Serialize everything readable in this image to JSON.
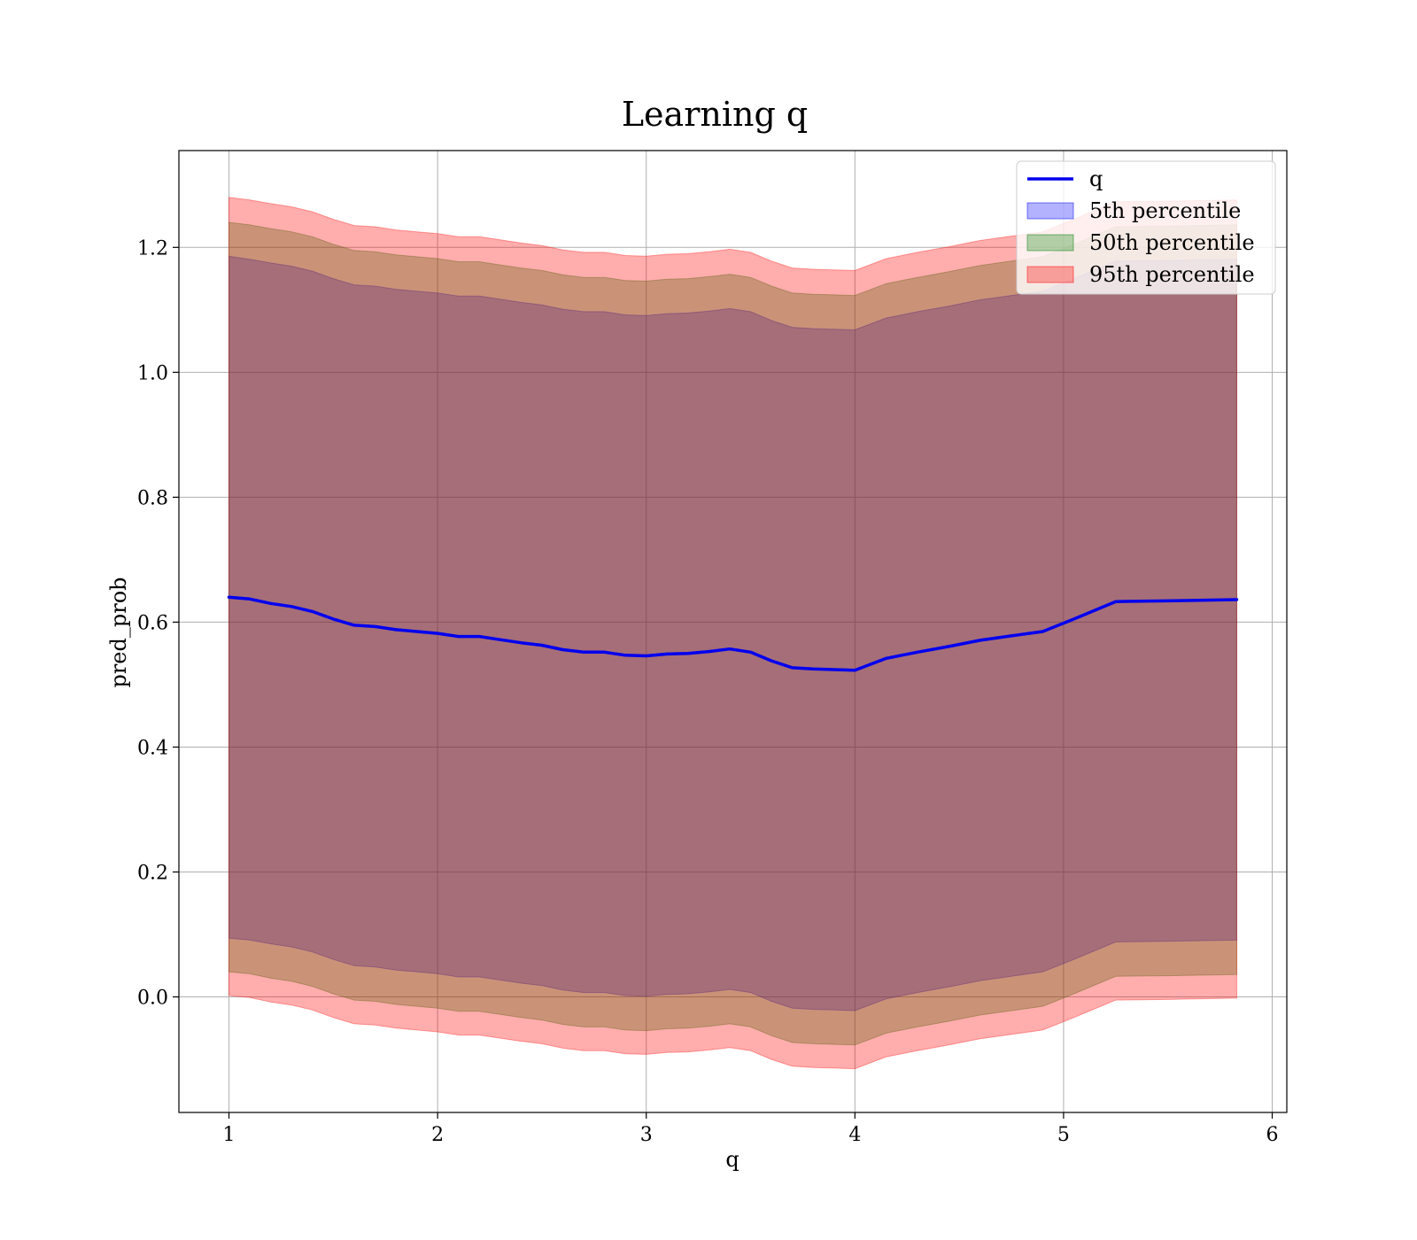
{
  "chart_data": {
    "type": "line",
    "title": "Learning q",
    "xlabel": "q",
    "ylabel": "pred_prob",
    "xlim": [
      0.76,
      6.07
    ],
    "ylim": [
      -0.185,
      1.355
    ],
    "xticks": [
      1,
      2,
      3,
      4,
      5,
      6
    ],
    "xtick_labels": [
      "1",
      "2",
      "3",
      "4",
      "5",
      "6"
    ],
    "yticks": [
      0.0,
      0.2,
      0.4,
      0.6,
      0.8,
      1.0,
      1.2
    ],
    "ytick_labels": [
      "0.0",
      "0.2",
      "0.4",
      "0.6",
      "0.8",
      "1.0",
      "1.2"
    ],
    "grid": true,
    "legend_position": "top-right",
    "x": [
      1.0,
      1.1,
      1.2,
      1.3,
      1.4,
      1.5,
      1.6,
      1.7,
      1.8,
      1.9,
      2.0,
      2.1,
      2.2,
      2.3,
      2.4,
      2.5,
      2.6,
      2.7,
      2.8,
      2.9,
      3.0,
      3.1,
      3.2,
      3.3,
      3.4,
      3.5,
      3.6,
      3.7,
      3.8,
      3.9,
      4.0,
      4.15,
      4.3,
      4.45,
      4.6,
      4.75,
      4.9,
      5.05,
      5.25,
      5.5,
      5.83
    ],
    "line": {
      "name": "q",
      "color": "#0000ee",
      "values": [
        0.64,
        0.637,
        0.63,
        0.625,
        0.617,
        0.605,
        0.595,
        0.593,
        0.588,
        0.585,
        0.582,
        0.577,
        0.577,
        0.572,
        0.567,
        0.563,
        0.556,
        0.552,
        0.552,
        0.547,
        0.546,
        0.549,
        0.55,
        0.553,
        0.557,
        0.552,
        0.538,
        0.527,
        0.525,
        0.524,
        0.523,
        0.542,
        0.552,
        0.561,
        0.571,
        0.578,
        0.585,
        0.605,
        0.633,
        0.634,
        0.636
      ]
    },
    "bands": [
      {
        "name": "5th percentile",
        "color": "#0000ff",
        "opacity": 0.3,
        "upper": [
          1.186,
          1.181,
          1.175,
          1.17,
          1.162,
          1.15,
          1.14,
          1.138,
          1.133,
          1.13,
          1.127,
          1.122,
          1.122,
          1.117,
          1.112,
          1.108,
          1.101,
          1.097,
          1.097,
          1.092,
          1.091,
          1.094,
          1.095,
          1.098,
          1.102,
          1.097,
          1.083,
          1.072,
          1.07,
          1.069,
          1.068,
          1.087,
          1.097,
          1.106,
          1.116,
          1.123,
          1.13,
          1.15,
          1.178,
          1.179,
          1.181
        ],
        "lower": [
          0.094,
          0.091,
          0.085,
          0.08,
          0.072,
          0.06,
          0.05,
          0.048,
          0.043,
          0.04,
          0.037,
          0.032,
          0.032,
          0.027,
          0.022,
          0.018,
          0.011,
          0.007,
          0.007,
          0.002,
          0.001,
          0.004,
          0.005,
          0.008,
          0.012,
          0.007,
          -0.007,
          -0.018,
          -0.02,
          -0.021,
          -0.022,
          -0.003,
          0.007,
          0.016,
          0.026,
          0.033,
          0.04,
          0.06,
          0.088,
          0.089,
          0.091
        ]
      },
      {
        "name": "50th percentile",
        "color": "#008000",
        "opacity": 0.3,
        "upper": [
          1.24,
          1.236,
          1.23,
          1.225,
          1.217,
          1.205,
          1.195,
          1.193,
          1.188,
          1.185,
          1.182,
          1.177,
          1.177,
          1.172,
          1.167,
          1.163,
          1.156,
          1.152,
          1.152,
          1.147,
          1.146,
          1.149,
          1.15,
          1.153,
          1.157,
          1.152,
          1.138,
          1.127,
          1.125,
          1.124,
          1.123,
          1.142,
          1.152,
          1.161,
          1.171,
          1.178,
          1.185,
          1.205,
          1.233,
          1.234,
          1.236
        ],
        "lower": [
          0.04,
          0.037,
          0.03,
          0.025,
          0.017,
          0.005,
          -0.005,
          -0.007,
          -0.012,
          -0.015,
          -0.018,
          -0.023,
          -0.023,
          -0.028,
          -0.033,
          -0.037,
          -0.044,
          -0.048,
          -0.048,
          -0.053,
          -0.054,
          -0.051,
          -0.05,
          -0.047,
          -0.043,
          -0.048,
          -0.062,
          -0.073,
          -0.075,
          -0.076,
          -0.077,
          -0.058,
          -0.048,
          -0.039,
          -0.029,
          -0.022,
          -0.015,
          0.005,
          0.033,
          0.034,
          0.036
        ]
      },
      {
        "name": "95th percentile",
        "color": "#ff0000",
        "opacity": 0.32,
        "upper": [
          1.28,
          1.276,
          1.27,
          1.265,
          1.257,
          1.245,
          1.235,
          1.233,
          1.228,
          1.225,
          1.222,
          1.217,
          1.217,
          1.212,
          1.207,
          1.203,
          1.196,
          1.192,
          1.192,
          1.187,
          1.186,
          1.189,
          1.19,
          1.193,
          1.197,
          1.192,
          1.178,
          1.167,
          1.165,
          1.164,
          1.163,
          1.182,
          1.192,
          1.201,
          1.211,
          1.218,
          1.225,
          1.245,
          1.273,
          1.274,
          1.276
        ],
        "lower": [
          0.002,
          -0.001,
          -0.008,
          -0.013,
          -0.021,
          -0.033,
          -0.043,
          -0.045,
          -0.05,
          -0.053,
          -0.056,
          -0.061,
          -0.061,
          -0.066,
          -0.071,
          -0.075,
          -0.082,
          -0.086,
          -0.086,
          -0.091,
          -0.092,
          -0.089,
          -0.088,
          -0.085,
          -0.081,
          -0.086,
          -0.1,
          -0.111,
          -0.113,
          -0.114,
          -0.115,
          -0.096,
          -0.086,
          -0.077,
          -0.067,
          -0.06,
          -0.053,
          -0.033,
          -0.005,
          -0.004,
          -0.002
        ]
      }
    ]
  }
}
